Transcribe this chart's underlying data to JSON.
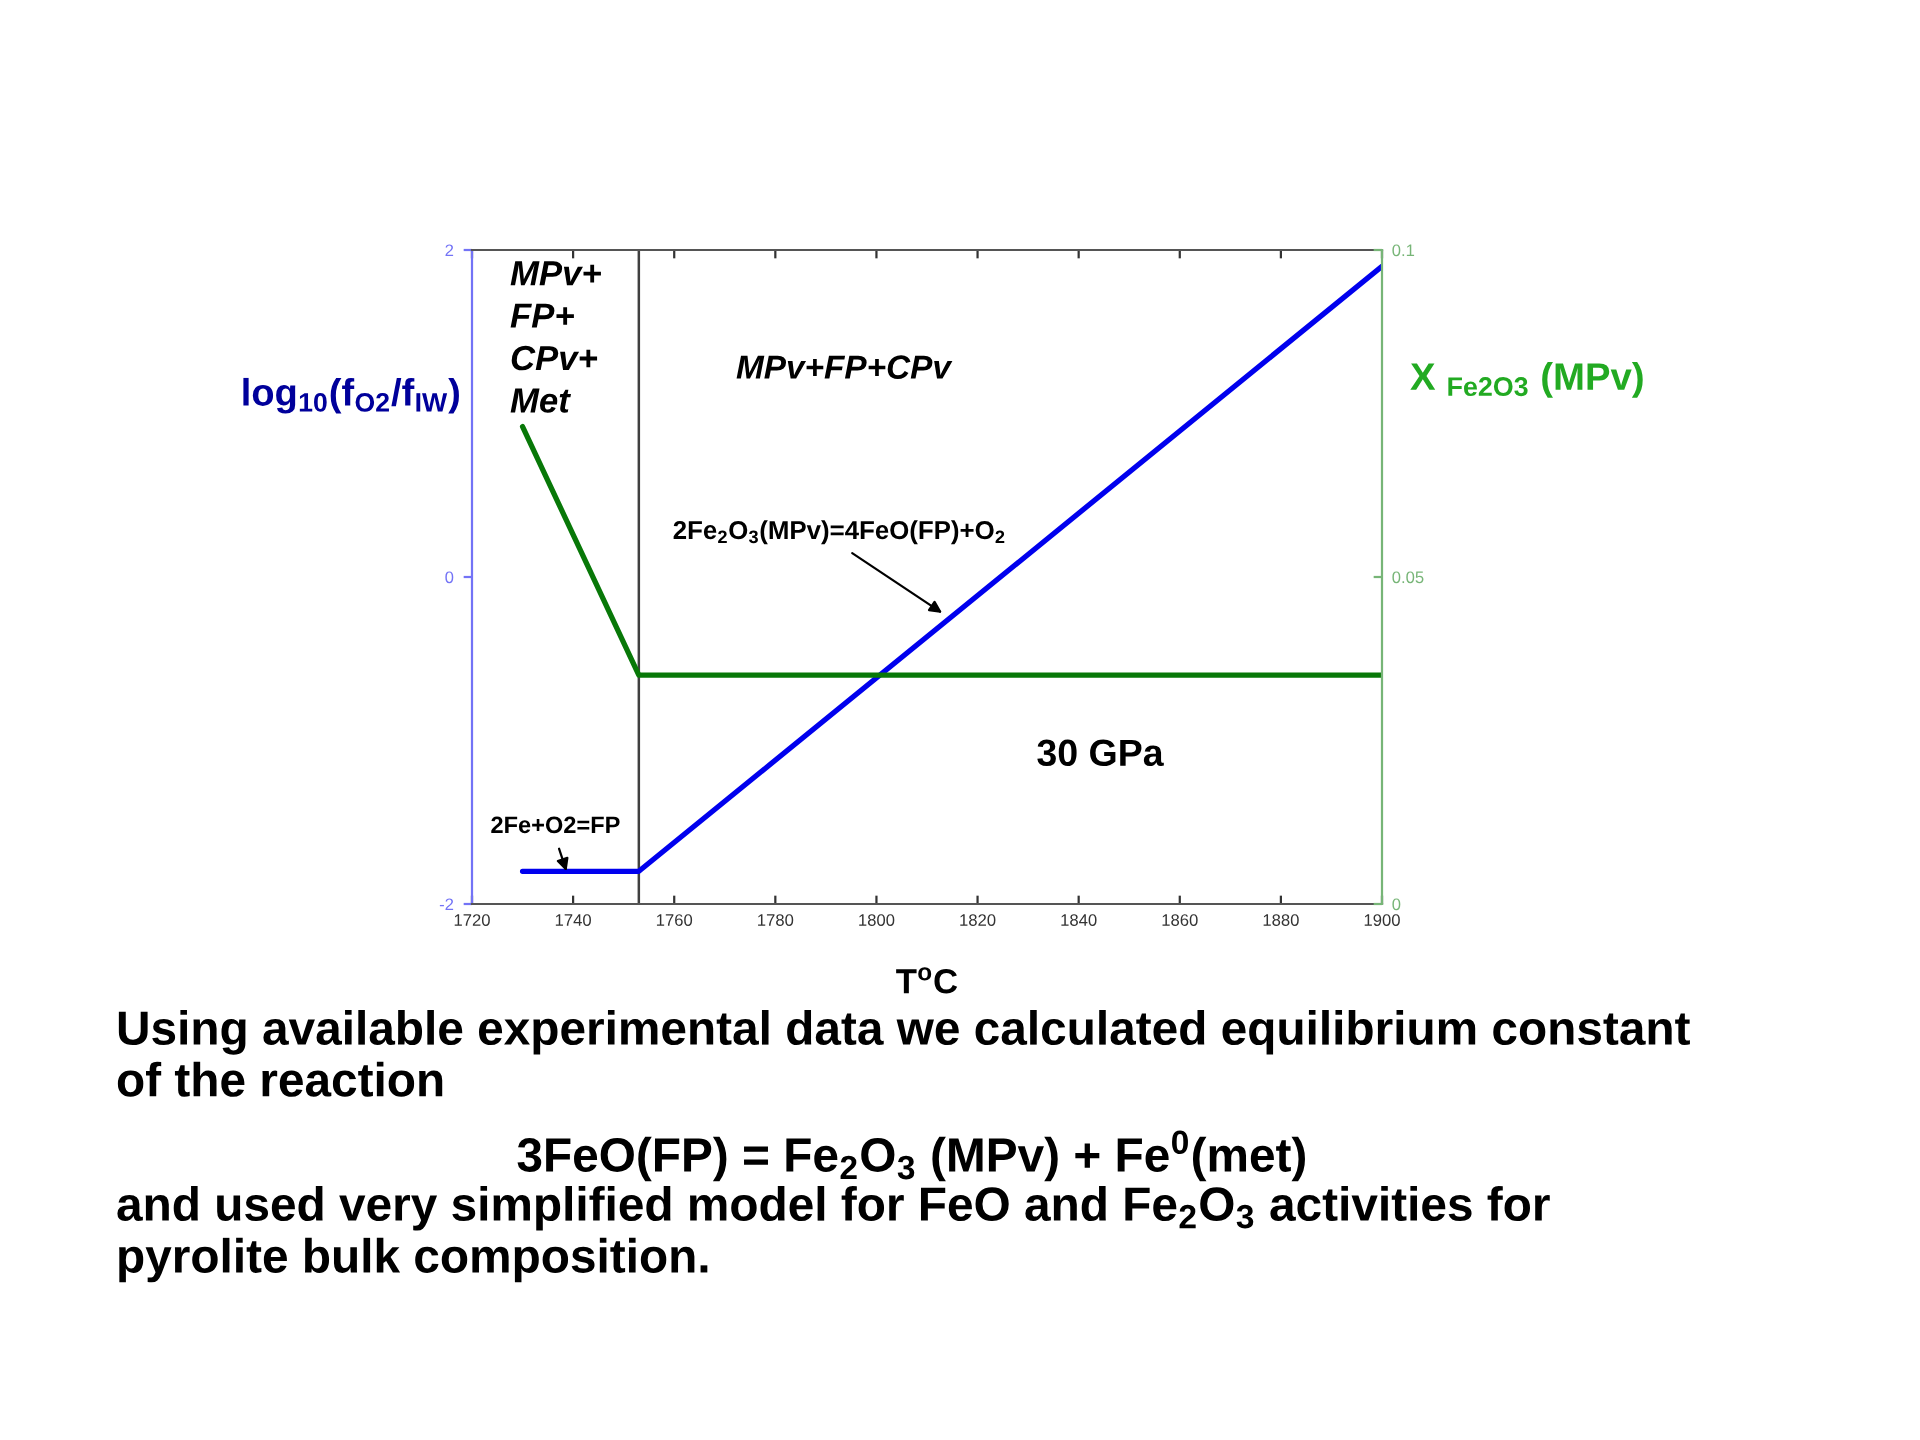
{
  "chart_data": {
    "type": "line",
    "xlabel": "T$^{o}$C",
    "ylabel": "log$_{10}$(f$_{O2}$/f$_{IW}$)",
    "y2label": "X $_{Fe2O3}$ (MPv)",
    "xlim": [
      1720,
      1900
    ],
    "xticks": [
      1720,
      1740,
      1760,
      1780,
      1800,
      1820,
      1840,
      1860,
      1880,
      1900
    ],
    "ylim": [
      -2,
      2
    ],
    "yticks": [
      -2,
      0,
      2
    ],
    "y2lim": [
      0,
      0.1
    ],
    "y2ticks": [
      0,
      0.05,
      0.1
    ],
    "series": [
      {
        "color": "#0000ee",
        "x": [
          1730,
          1753,
          1900
        ],
        "values": [
          -1.8,
          -1.8,
          1.9
        ]
      },
      {
        "color": "#087808",
        "axis": "y2",
        "x": [
          1730,
          1753,
          1900
        ],
        "values": [
          0.073,
          0.035,
          0.035
        ]
      }
    ],
    "ref_lines": [
      {
        "axis": "x",
        "value": 1753,
        "color": "#404040"
      }
    ],
    "grid": false,
    "legend": false,
    "annotations": [
      "MPv+\nFP+\nCPv+\nMet",
      "MPv+FP+CPv",
      {
        "text": "2Fe$_{2}$O$_{3}$(MPv)=4FeO(FP)+O$_{2}$",
        "x": 1813,
        "y": -0.22
      },
      {
        "text": "2Fe+O2=FP",
        "x": 1738.7,
        "y": -1.8
      },
      "30 GPa",
      "Using available experimental data we calculated equilibrium constant\nof the reaction",
      "3FeO(FP) = Fe$_{2}$O$_{3}$ (MPv) + Fe$^{0}$(met)",
      "and used very simplified model for FeO and Fe$_{2}$O$_{3}$ activities for\npyrolite bulk composition."
    ]
  }
}
